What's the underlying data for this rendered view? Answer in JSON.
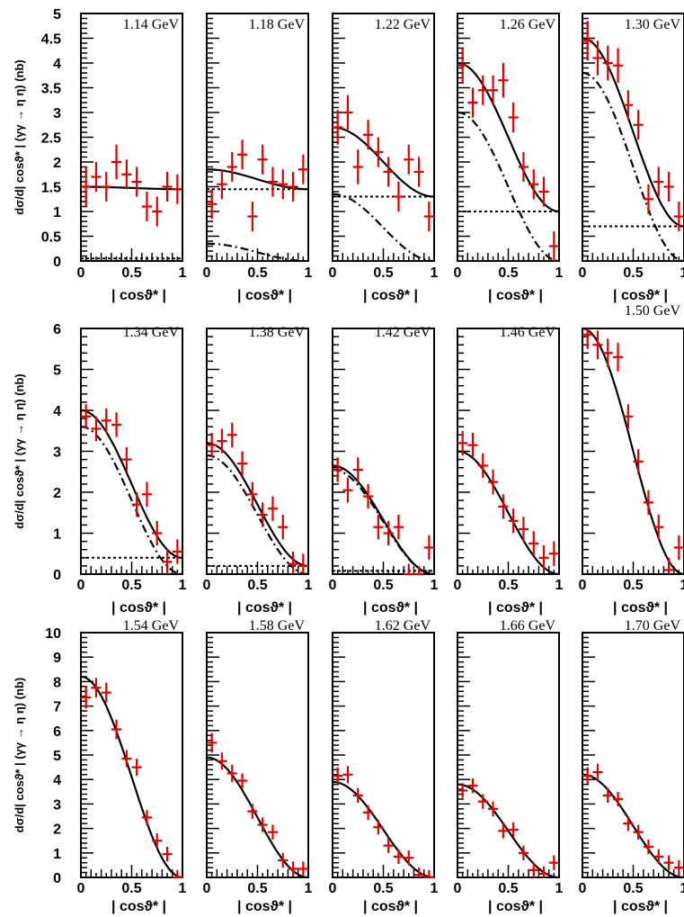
{
  "chart_data": {
    "type": "scatter",
    "xlabel": "| cosϑ* |",
    "ylabel": "dσ/d| cosϑ* | (γγ → η η) (nb)",
    "x_ticks": [
      "0",
      "0.5",
      "1"
    ],
    "rows": [
      {
        "ylim": [
          0,
          5
        ],
        "yticks": [
          "0",
          "0.5",
          "1",
          "1.5",
          "2",
          "2.5",
          "3",
          "3.5",
          "4",
          "4.5",
          "5"
        ]
      },
      {
        "ylim": [
          0,
          6
        ],
        "yticks": [
          "0",
          "1",
          "2",
          "3",
          "4",
          "5",
          "6"
        ]
      },
      {
        "ylim": [
          0,
          10
        ],
        "yticks": [
          "0",
          "1",
          "2",
          "3",
          "4",
          "5",
          "6",
          "7",
          "8",
          "9",
          "10"
        ]
      }
    ],
    "x": [
      0.05,
      0.15,
      0.25,
      0.35,
      0.45,
      0.55,
      0.65,
      0.75,
      0.85,
      0.95
    ],
    "panels": [
      {
        "energy": "1.14 GeV",
        "row": 0,
        "values": [
          1.5,
          1.7,
          1.5,
          2.0,
          1.75,
          1.6,
          1.1,
          1.0,
          1.5,
          1.45
        ],
        "errors": [
          0.4,
          0.3,
          0.3,
          0.35,
          0.3,
          0.3,
          0.3,
          0.3,
          0.3,
          0.3
        ],
        "solid": [
          1.5,
          1.45
        ],
        "dotted": 0.05
      },
      {
        "energy": "1.18 GeV",
        "row": 0,
        "values": [
          1.15,
          1.55,
          1.9,
          2.15,
          0.9,
          2.05,
          1.6,
          1.55,
          1.5,
          1.85
        ],
        "errors": [
          0.3,
          0.3,
          0.3,
          0.3,
          0.3,
          0.3,
          0.3,
          0.3,
          0.3,
          0.3
        ],
        "solid": [
          1.85,
          1.45
        ],
        "dashdot": [
          0.35,
          0.0
        ],
        "dotted": 1.45
      },
      {
        "energy": "1.22 GeV",
        "row": 0,
        "values": [
          2.7,
          3.0,
          1.9,
          2.55,
          2.2,
          1.8,
          1.3,
          2.05,
          1.8,
          0.9
        ],
        "errors": [
          0.35,
          0.35,
          0.35,
          0.3,
          0.3,
          0.3,
          0.3,
          0.3,
          0.3,
          0.3
        ],
        "solid": [
          2.7,
          1.3
        ],
        "dashdot": [
          1.35,
          0.0
        ],
        "dotted": 1.3
      },
      {
        "energy": "1.26 GeV",
        "row": 0,
        "values": [
          3.95,
          3.2,
          3.45,
          3.45,
          3.65,
          2.9,
          1.9,
          1.55,
          1.4,
          0.3
        ],
        "errors": [
          0.35,
          0.3,
          0.3,
          0.3,
          0.35,
          0.3,
          0.3,
          0.3,
          0.3,
          0.3
        ],
        "solid": [
          4.0,
          1.0
        ],
        "dashdot": [
          3.0,
          0.0
        ],
        "dotted": 1.0
      },
      {
        "energy": "1.30 GeV",
        "row": 0,
        "values": [
          4.45,
          4.1,
          4.0,
          3.95,
          3.15,
          2.75,
          1.25,
          1.6,
          1.5,
          0.9
        ],
        "errors": [
          0.4,
          0.35,
          0.35,
          0.35,
          0.3,
          0.3,
          0.3,
          0.3,
          0.3,
          0.3
        ],
        "solid": [
          4.5,
          0.7
        ],
        "dashdot": [
          3.8,
          0.0
        ],
        "dotted": 0.7
      },
      {
        "energy": "1.34 GeV",
        "row": 1,
        "values": [
          3.85,
          3.55,
          3.75,
          3.65,
          2.8,
          1.7,
          1.95,
          1.0,
          0.3,
          0.55
        ],
        "errors": [
          0.3,
          0.3,
          0.3,
          0.3,
          0.3,
          0.3,
          0.3,
          0.3,
          0.3,
          0.3
        ],
        "solid": [
          4.0,
          0.4
        ],
        "dashdot": [
          3.6,
          0.0
        ],
        "dotted": 0.4
      },
      {
        "energy": "1.38 GeV",
        "row": 1,
        "values": [
          3.15,
          3.25,
          3.4,
          2.7,
          1.95,
          1.45,
          1.6,
          1.15,
          0.25,
          0.2
        ],
        "errors": [
          0.3,
          0.3,
          0.3,
          0.3,
          0.3,
          0.3,
          0.3,
          0.3,
          0.3,
          0.3
        ],
        "solid": [
          3.2,
          0.2
        ],
        "dashdot": [
          2.9,
          0.0
        ],
        "dotted": 0.2
      },
      {
        "energy": "1.42 GeV",
        "row": 1,
        "values": [
          2.55,
          2.05,
          2.55,
          1.9,
          1.15,
          1.0,
          1.15,
          -0.05,
          -0.1,
          0.65
        ],
        "errors": [
          0.3,
          0.3,
          0.3,
          0.3,
          0.3,
          0.3,
          0.3,
          0.3,
          0.3,
          0.3
        ],
        "solid": [
          2.65,
          0.0
        ],
        "dashdot": [
          2.55,
          0.0
        ],
        "dotted": 0.08
      },
      {
        "energy": "1.46 GeV",
        "row": 1,
        "values": [
          3.2,
          3.15,
          2.65,
          2.25,
          1.65,
          1.3,
          1.1,
          0.75,
          0.4,
          0.5
        ],
        "errors": [
          0.3,
          0.3,
          0.3,
          0.3,
          0.3,
          0.3,
          0.3,
          0.3,
          0.3,
          0.3
        ],
        "solid": [
          3.0,
          0.0
        ]
      },
      {
        "energy": "1.50 GeV",
        "row": 1,
        "values": [
          5.85,
          5.6,
          5.4,
          5.3,
          3.85,
          2.75,
          1.75,
          1.15,
          0.1,
          0.65
        ],
        "errors": [
          0.35,
          0.35,
          0.35,
          0.35,
          0.3,
          0.3,
          0.3,
          0.3,
          0.3,
          0.3
        ],
        "solid": [
          6.0,
          0.0
        ]
      },
      {
        "energy": "1.54 GeV",
        "row": 2,
        "values": [
          7.35,
          7.75,
          7.55,
          6.05,
          4.85,
          4.5,
          2.45,
          1.5,
          0.95,
          0.0
        ],
        "errors": [
          0.45,
          0.4,
          0.4,
          0.4,
          0.35,
          0.35,
          0.3,
          0.3,
          0.3,
          0.3
        ],
        "solid": [
          8.2,
          0.0
        ]
      },
      {
        "energy": "1.58 GeV",
        "row": 2,
        "values": [
          5.5,
          4.75,
          4.25,
          3.95,
          2.7,
          2.15,
          1.85,
          0.7,
          0.35,
          0.35
        ],
        "errors": [
          0.4,
          0.35,
          0.35,
          0.3,
          0.3,
          0.3,
          0.3,
          0.3,
          0.3,
          0.3
        ],
        "solid": [
          4.9,
          0.0
        ]
      },
      {
        "energy": "1.62 GeV",
        "row": 2,
        "values": [
          4.15,
          4.2,
          3.35,
          2.65,
          2.05,
          1.3,
          0.85,
          0.8,
          0.1,
          0.0
        ],
        "errors": [
          0.35,
          0.35,
          0.3,
          0.3,
          0.3,
          0.3,
          0.3,
          0.3,
          0.3,
          0.3
        ],
        "solid": [
          3.9,
          0.0
        ]
      },
      {
        "energy": "1.66 GeV",
        "row": 2,
        "values": [
          3.55,
          3.75,
          3.1,
          2.8,
          1.9,
          1.95,
          1.0,
          0.3,
          0.15,
          0.6
        ],
        "errors": [
          0.3,
          0.3,
          0.3,
          0.3,
          0.3,
          0.3,
          0.3,
          0.3,
          0.3,
          0.3
        ],
        "solid": [
          3.8,
          0.0
        ]
      },
      {
        "energy": "1.70 GeV",
        "row": 2,
        "values": [
          4.15,
          4.3,
          3.35,
          3.2,
          2.2,
          1.85,
          1.25,
          0.85,
          0.6,
          0.4
        ],
        "errors": [
          0.35,
          0.35,
          0.3,
          0.3,
          0.3,
          0.3,
          0.3,
          0.3,
          0.3,
          0.3
        ],
        "solid": [
          4.2,
          0.0
        ]
      }
    ]
  }
}
